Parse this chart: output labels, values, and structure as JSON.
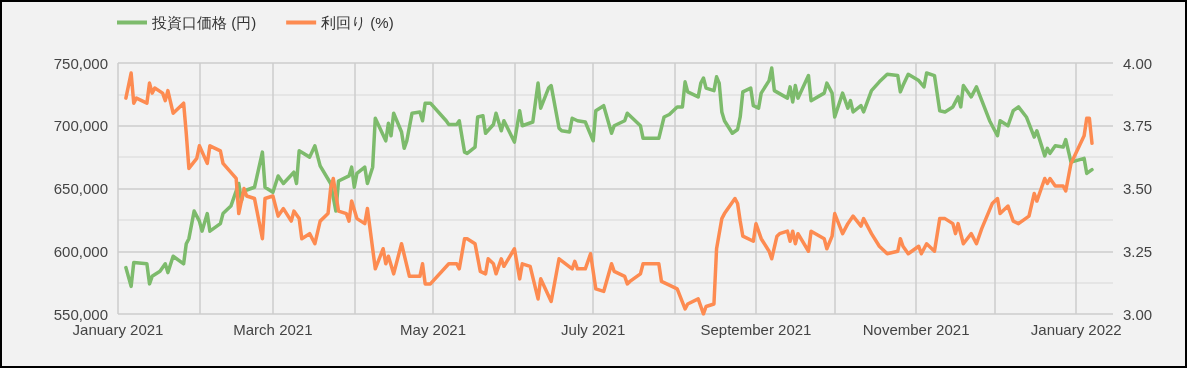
{
  "chart_data": {
    "type": "line",
    "xlim": [
      "2021-01-01",
      "2022-01-15"
    ],
    "xticks": [
      {
        "value": "2021-01-01",
        "label": "January 2021"
      },
      {
        "value": "2021-02-01",
        "label": null
      },
      {
        "value": "2021-03-01",
        "label": "March 2021"
      },
      {
        "value": "2021-04-01",
        "label": null
      },
      {
        "value": "2021-05-01",
        "label": "May 2021"
      },
      {
        "value": "2021-06-01",
        "label": null
      },
      {
        "value": "2021-07-01",
        "label": "July 2021"
      },
      {
        "value": "2021-08-01",
        "label": null
      },
      {
        "value": "2021-09-01",
        "label": "September 2021"
      },
      {
        "value": "2021-10-01",
        "label": null
      },
      {
        "value": "2021-11-01",
        "label": "November 2021"
      },
      {
        "value": "2021-12-01",
        "label": null
      },
      {
        "value": "2022-01-01",
        "label": "January 2022"
      }
    ],
    "ylim": [
      550000,
      750000
    ],
    "yticks": [
      {
        "value": 550000,
        "label": "550,000"
      },
      {
        "value": 575000,
        "label": null
      },
      {
        "value": 600000,
        "label": "600,000"
      },
      {
        "value": 625000,
        "label": null
      },
      {
        "value": 650000,
        "label": "650,000"
      },
      {
        "value": 675000,
        "label": null
      },
      {
        "value": 700000,
        "label": "700,000"
      },
      {
        "value": 725000,
        "label": null
      },
      {
        "value": 750000,
        "label": "750,000"
      }
    ],
    "y2lim": [
      3,
      4
    ],
    "y2ticks": [
      {
        "value": 3,
        "label": "3.00"
      },
      {
        "value": 3.25,
        "label": "3.25"
      },
      {
        "value": 3.5,
        "label": "3.50"
      },
      {
        "value": 3.75,
        "label": "3.75"
      },
      {
        "value": 4,
        "label": "4.00"
      }
    ],
    "grid": true,
    "legend": "top left",
    "marker": "none",
    "line_style": "solid",
    "series": [
      {
        "name": "投資口価格 (円)",
        "color": "#7dbb6c",
        "x": [
          "2021-01-04",
          "2021-01-06",
          "2021-01-07",
          "2021-01-12",
          "2021-01-13",
          "2021-01-14",
          "2021-01-17",
          "2021-01-19",
          "2021-01-20",
          "2021-01-22",
          "2021-01-26",
          "2021-01-27",
          "2021-01-28",
          "2021-01-30",
          "2021-02-01",
          "2021-02-02",
          "2021-02-04",
          "2021-02-05",
          "2021-02-09",
          "2021-02-10",
          "2021-02-13",
          "2021-02-16",
          "2021-02-17",
          "2021-02-18",
          "2021-02-22",
          "2021-02-25",
          "2021-02-26",
          "2021-03-01",
          "2021-03-03",
          "2021-03-05",
          "2021-03-09",
          "2021-03-10",
          "2021-03-11",
          "2021-03-15",
          "2021-03-17",
          "2021-03-19",
          "2021-03-23",
          "2021-03-25",
          "2021-03-26",
          "2021-03-30",
          "2021-03-31",
          "2021-04-01",
          "2021-04-02",
          "2021-04-05",
          "2021-04-06",
          "2021-04-08",
          "2021-04-09",
          "2021-04-13",
          "2021-04-14",
          "2021-04-15",
          "2021-04-16",
          "2021-04-19",
          "2021-04-20",
          "2021-04-21",
          "2021-04-23",
          "2021-04-26",
          "2021-04-27",
          "2021-04-28",
          "2021-04-30",
          "2021-05-06",
          "2021-05-07",
          "2021-05-10",
          "2021-05-11",
          "2021-05-13",
          "2021-05-14",
          "2021-05-17",
          "2021-05-18",
          "2021-05-20",
          "2021-05-21",
          "2021-05-24",
          "2021-05-25",
          "2021-05-27",
          "2021-05-28",
          "2021-06-01",
          "2021-06-03",
          "2021-06-04",
          "2021-06-08",
          "2021-06-10",
          "2021-06-11",
          "2021-06-14",
          "2021-06-15",
          "2021-06-18",
          "2021-06-19",
          "2021-06-22",
          "2021-06-23",
          "2021-06-25",
          "2021-06-28",
          "2021-07-01",
          "2021-07-02",
          "2021-07-05",
          "2021-07-08",
          "2021-07-09",
          "2021-07-13",
          "2021-07-14",
          "2021-07-19",
          "2021-07-20",
          "2021-07-26",
          "2021-07-28",
          "2021-07-30",
          "2021-08-02",
          "2021-08-04",
          "2021-08-05",
          "2021-08-06",
          "2021-08-10",
          "2021-08-11",
          "2021-08-12",
          "2021-08-13",
          "2021-08-16",
          "2021-08-17",
          "2021-08-18",
          "2021-08-19",
          "2021-08-20",
          "2021-08-23",
          "2021-08-25",
          "2021-08-26",
          "2021-08-27",
          "2021-08-30",
          "2021-08-31",
          "2021-09-02",
          "2021-09-03",
          "2021-09-06",
          "2021-09-07",
          "2021-09-08",
          "2021-09-13",
          "2021-09-14",
          "2021-09-15",
          "2021-09-16",
          "2021-09-17",
          "2021-09-21",
          "2021-09-22",
          "2021-09-27",
          "2021-09-28",
          "2021-09-30",
          "2021-10-01",
          "2021-10-04",
          "2021-10-06",
          "2021-10-07",
          "2021-10-08",
          "2021-10-11",
          "2021-10-12",
          "2021-10-15",
          "2021-10-18",
          "2021-10-21",
          "2021-10-25",
          "2021-10-26",
          "2021-10-27",
          "2021-10-29",
          "2021-11-02",
          "2021-11-04",
          "2021-11-05",
          "2021-11-08",
          "2021-11-10",
          "2021-11-12",
          "2021-11-15",
          "2021-11-17",
          "2021-11-18",
          "2021-11-19",
          "2021-11-22",
          "2021-11-24",
          "2021-11-29",
          "2021-12-02",
          "2021-12-03",
          "2021-12-06",
          "2021-12-08",
          "2021-12-10",
          "2021-12-13",
          "2021-12-16",
          "2021-12-17",
          "2021-12-20",
          "2021-12-21",
          "2021-12-22",
          "2021-12-24",
          "2021-12-27",
          "2021-12-28",
          "2021-12-30",
          "2022-01-04",
          "2022-01-05",
          "2022-01-07"
        ],
        "values": [
          587000,
          572000,
          591000,
          590000,
          574000,
          580000,
          584000,
          590000,
          583000,
          596000,
          590000,
          606000,
          610000,
          632000,
          624000,
          616000,
          630000,
          616000,
          622000,
          630000,
          636000,
          654000,
          640000,
          648000,
          651000,
          679000,
          651000,
          647000,
          660000,
          654000,
          663000,
          654000,
          680000,
          675000,
          684000,
          668000,
          654000,
          632000,
          656000,
          660000,
          667000,
          651000,
          662000,
          667000,
          654000,
          667000,
          706000,
          688000,
          702000,
          692000,
          710000,
          695000,
          682000,
          688000,
          710000,
          711000,
          704000,
          718000,
          718000,
          704000,
          701000,
          701000,
          704000,
          679000,
          678000,
          683000,
          707000,
          708000,
          694000,
          701000,
          710000,
          696000,
          704000,
          687000,
          712000,
          700000,
          703000,
          734000,
          714000,
          730000,
          732000,
          698000,
          696000,
          695000,
          706000,
          704000,
          703000,
          688000,
          712000,
          716000,
          694000,
          700000,
          704000,
          710000,
          700000,
          690000,
          690000,
          707000,
          709000,
          715000,
          715000,
          735000,
          727000,
          723000,
          734000,
          738000,
          730000,
          728000,
          739000,
          734000,
          711000,
          704000,
          694000,
          697000,
          707000,
          727000,
          730000,
          716000,
          714000,
          726000,
          736000,
          746000,
          728000,
          722000,
          731000,
          719000,
          732000,
          722000,
          740000,
          720000,
          726000,
          734000,
          726000,
          707000,
          726000,
          714000,
          720000,
          711000,
          716000,
          711000,
          728000,
          735000,
          741000,
          740000,
          727000,
          732000,
          741000,
          736000,
          731000,
          742000,
          740000,
          712000,
          711000,
          715000,
          723000,
          715000,
          732000,
          723000,
          731000,
          704000,
          692000,
          704000,
          700000,
          712000,
          715000,
          707000,
          691000,
          696000,
          676000,
          682000,
          678000,
          684000,
          683000,
          689000,
          671000,
          674000,
          662000,
          665000
        ]
      },
      {
        "name": "利回り (%)",
        "color": "#fd8b51",
        "axis": "y2",
        "x": [
          "2021-01-04",
          "2021-01-06",
          "2021-01-07",
          "2021-01-08",
          "2021-01-12",
          "2021-01-13",
          "2021-01-14",
          "2021-01-15",
          "2021-01-18",
          "2021-01-19",
          "2021-01-20",
          "2021-01-22",
          "2021-01-26",
          "2021-01-27",
          "2021-01-28",
          "2021-01-31",
          "2021-02-01",
          "2021-02-04",
          "2021-02-05",
          "2021-02-09",
          "2021-02-10",
          "2021-02-15",
          "2021-02-16",
          "2021-02-18",
          "2021-02-19",
          "2021-02-22",
          "2021-02-25",
          "2021-02-26",
          "2021-03-01",
          "2021-03-03",
          "2021-03-05",
          "2021-03-08",
          "2021-03-09",
          "2021-03-11",
          "2021-03-12",
          "2021-03-15",
          "2021-03-17",
          "2021-03-19",
          "2021-03-22",
          "2021-03-23",
          "2021-03-24",
          "2021-03-26",
          "2021-03-29",
          "2021-03-30",
          "2021-03-31",
          "2021-04-02",
          "2021-04-05",
          "2021-04-06",
          "2021-04-09",
          "2021-04-12",
          "2021-04-13",
          "2021-04-14",
          "2021-04-16",
          "2021-04-19",
          "2021-04-22",
          "2021-04-26",
          "2021-04-27",
          "2021-04-28",
          "2021-04-30",
          "2021-05-07",
          "2021-05-10",
          "2021-05-11",
          "2021-05-13",
          "2021-05-14",
          "2021-05-17",
          "2021-05-19",
          "2021-05-21",
          "2021-05-22",
          "2021-05-24",
          "2021-05-25",
          "2021-05-27",
          "2021-05-28",
          "2021-06-01",
          "2021-06-03",
          "2021-06-04",
          "2021-06-07",
          "2021-06-10",
          "2021-06-11",
          "2021-06-15",
          "2021-06-18",
          "2021-06-23",
          "2021-06-24",
          "2021-06-25",
          "2021-06-28",
          "2021-06-30",
          "2021-07-02",
          "2021-07-05",
          "2021-07-08",
          "2021-07-09",
          "2021-07-13",
          "2021-07-14",
          "2021-07-15",
          "2021-07-19",
          "2021-07-20",
          "2021-07-26",
          "2021-07-27",
          "2021-07-29",
          "2021-08-02",
          "2021-08-05",
          "2021-08-06",
          "2021-08-10",
          "2021-08-12",
          "2021-08-13",
          "2021-08-16",
          "2021-08-17",
          "2021-08-19",
          "2021-08-20",
          "2021-08-24",
          "2021-08-25",
          "2021-08-26",
          "2021-08-27",
          "2021-08-31",
          "2021-09-01",
          "2021-09-03",
          "2021-09-06",
          "2021-09-07",
          "2021-09-09",
          "2021-09-10",
          "2021-09-13",
          "2021-09-14",
          "2021-09-15",
          "2021-09-16",
          "2021-09-17",
          "2021-09-21",
          "2021-09-22",
          "2021-09-27",
          "2021-09-28",
          "2021-09-30",
          "2021-10-01",
          "2021-10-04",
          "2021-10-06",
          "2021-10-08",
          "2021-10-11",
          "2021-10-12",
          "2021-10-15",
          "2021-10-18",
          "2021-10-21",
          "2021-10-25",
          "2021-10-26",
          "2021-10-27",
          "2021-10-29",
          "2021-11-02",
          "2021-11-03",
          "2021-11-05",
          "2021-11-08",
          "2021-11-10",
          "2021-11-12",
          "2021-11-15",
          "2021-11-16",
          "2021-11-17",
          "2021-11-19",
          "2021-11-22",
          "2021-11-24",
          "2021-11-26",
          "2021-11-30",
          "2021-12-02",
          "2021-12-03",
          "2021-12-06",
          "2021-12-08",
          "2021-12-10",
          "2021-12-14",
          "2021-12-16",
          "2021-12-17",
          "2021-12-20",
          "2021-12-21",
          "2021-12-22",
          "2021-12-24",
          "2021-12-27",
          "2021-12-28",
          "2021-12-30",
          "2022-01-04",
          "2022-01-05",
          "2022-01-06",
          "2022-01-07"
        ],
        "values": [
          3.86,
          3.96,
          3.84,
          3.86,
          3.84,
          3.92,
          3.88,
          3.9,
          3.88,
          3.85,
          3.89,
          3.8,
          3.84,
          3.72,
          3.58,
          3.62,
          3.67,
          3.6,
          3.67,
          3.65,
          3.6,
          3.54,
          3.4,
          3.5,
          3.47,
          3.46,
          3.3,
          3.46,
          3.47,
          3.39,
          3.42,
          3.37,
          3.41,
          3.38,
          3.3,
          3.32,
          3.28,
          3.37,
          3.4,
          3.5,
          3.54,
          3.41,
          3.4,
          3.37,
          3.45,
          3.38,
          3.36,
          3.42,
          3.18,
          3.26,
          3.2,
          3.23,
          3.16,
          3.28,
          3.15,
          3.15,
          3.2,
          3.12,
          3.12,
          3.2,
          3.2,
          3.18,
          3.3,
          3.3,
          3.28,
          3.17,
          3.16,
          3.22,
          3.2,
          3.16,
          3.22,
          3.19,
          3.26,
          3.14,
          3.2,
          3.19,
          3.06,
          3.14,
          3.05,
          3.22,
          3.18,
          3.21,
          3.18,
          3.18,
          3.24,
          3.1,
          3.09,
          3.2,
          3.17,
          3.15,
          3.12,
          3.13,
          3.16,
          3.2,
          3.2,
          3.13,
          3.12,
          3.1,
          3.02,
          3.04,
          3.06,
          3,
          3.03,
          3.04,
          3.26,
          3.38,
          3.4,
          3.46,
          3.44,
          3.37,
          3.31,
          3.29,
          3.36,
          3.3,
          3.25,
          3.22,
          3.31,
          3.32,
          3.33,
          3.29,
          3.33,
          3.28,
          3.32,
          3.25,
          3.33,
          3.3,
          3.26,
          3.31,
          3.4,
          3.32,
          3.36,
          3.39,
          3.35,
          3.38,
          3.32,
          3.27,
          3.24,
          3.25,
          3.3,
          3.27,
          3.24,
          3.27,
          3.24,
          3.28,
          3.25,
          3.38,
          3.38,
          3.36,
          3.32,
          3.36,
          3.28,
          3.32,
          3.28,
          3.34,
          3.44,
          3.46,
          3.4,
          3.43,
          3.37,
          3.36,
          3.39,
          3.48,
          3.45,
          3.54,
          3.52,
          3.54,
          3.51,
          3.51,
          3.49,
          3.6,
          3.71,
          3.78,
          3.78,
          3.68
        ]
      }
    ]
  }
}
